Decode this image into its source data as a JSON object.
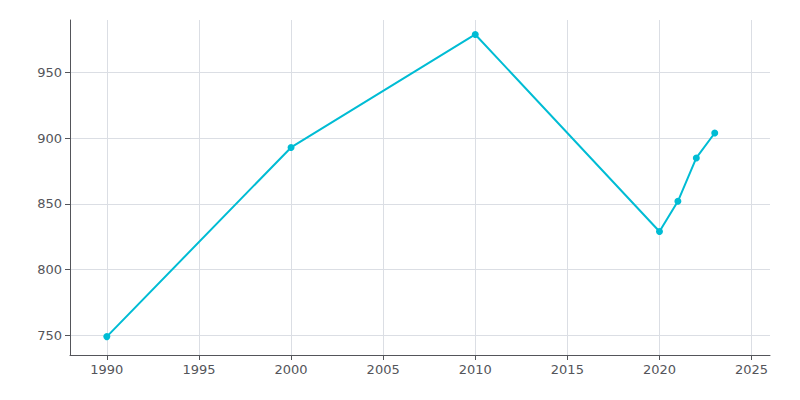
{
  "chart_data": {
    "type": "line",
    "x": [
      1990,
      2000,
      2010,
      2020,
      2021,
      2022,
      2023
    ],
    "values": [
      749,
      893,
      979,
      829,
      852,
      885,
      904
    ],
    "color": "#00BCD4",
    "marker": "circle",
    "xlim": [
      1988,
      2026
    ],
    "ylim": [
      735,
      990
    ],
    "xticks": [
      1990,
      1995,
      2000,
      2005,
      2010,
      2015,
      2020,
      2025
    ],
    "yticks": [
      750,
      800,
      850,
      900,
      950
    ],
    "grid": true
  }
}
